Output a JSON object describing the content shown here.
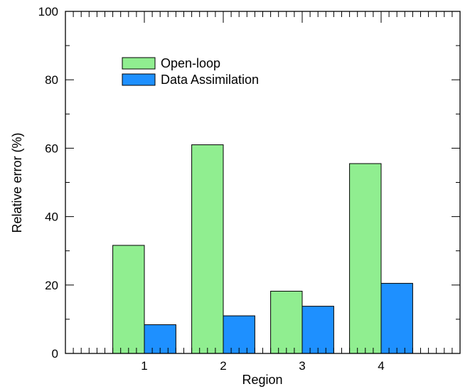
{
  "chart_data": {
    "type": "bar",
    "xlabel": "Region",
    "ylabel": "Relative error (%)",
    "categories": [
      "1",
      "2",
      "3",
      "4"
    ],
    "ylim": [
      0,
      100
    ],
    "yticks": [
      "0",
      "20",
      "40",
      "60",
      "80",
      "100"
    ],
    "series": [
      {
        "name": "Open-loop",
        "color": "#90ee90",
        "values": [
          31.6,
          61.0,
          18.2,
          55.5
        ]
      },
      {
        "name": "Data Assimilation",
        "color": "#1e90ff",
        "values": [
          8.4,
          11.0,
          13.8,
          20.5
        ]
      }
    ],
    "legend_position": "top-left",
    "grid": false
  }
}
